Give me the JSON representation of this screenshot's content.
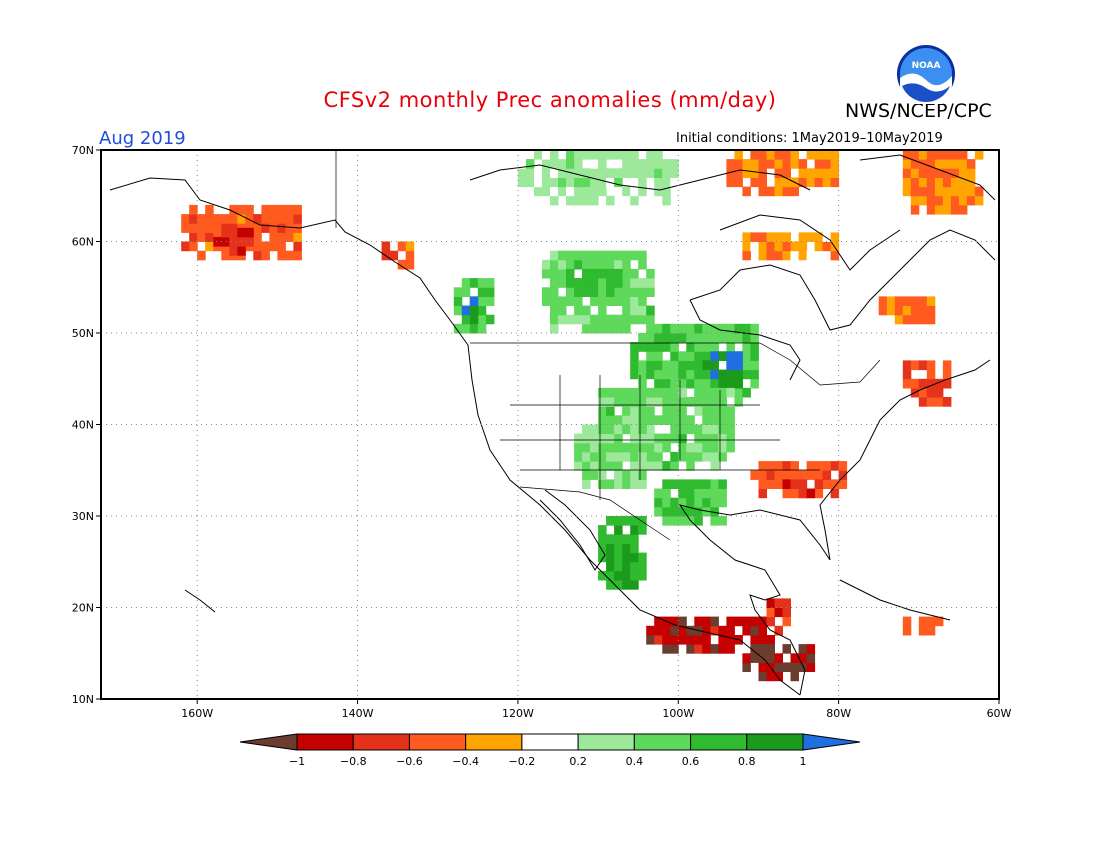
{
  "title": "CFSv2 monthly Prec anomalies (mm/day)",
  "agency": "NWS/NCEP/CPC",
  "logo_text": "NOAA",
  "month": "Aug 2019",
  "initial_conditions": "Initial conditions: 1May2019–10May2019",
  "colors": {
    "title": "#e8000b",
    "month": "#1f4fd8",
    "frame": "#000000",
    "grid": "#888888"
  },
  "map": {
    "lon_range": [
      -172,
      -60
    ],
    "lat_range": [
      10,
      70
    ],
    "lon_ticks": [
      {
        "value": -160,
        "label": "160W"
      },
      {
        "value": -140,
        "label": "140W"
      },
      {
        "value": -120,
        "label": "120W"
      },
      {
        "value": -100,
        "label": "100W"
      },
      {
        "value": -80,
        "label": "80W"
      },
      {
        "value": -60,
        "label": "60W"
      }
    ],
    "lat_ticks": [
      {
        "value": 10,
        "label": "10N"
      },
      {
        "value": 20,
        "label": "20N"
      },
      {
        "value": 30,
        "label": "30N"
      },
      {
        "value": 40,
        "label": "40N"
      },
      {
        "value": 50,
        "label": "50N"
      },
      {
        "value": 60,
        "label": "60N"
      },
      {
        "value": 70,
        "label": "70N"
      }
    ],
    "gridlines": "dotted"
  },
  "legend": {
    "labels": [
      "−1",
      "−0.8",
      "−0.6",
      "−0.4",
      "−0.2",
      "0.2",
      "0.4",
      "0.6",
      "0.8",
      "1"
    ],
    "colors": [
      "#6b3d2e",
      "#c40000",
      "#e5321a",
      "#ff5a1f",
      "#ffa400",
      "#ffffff",
      "#9de89b",
      "#5ed95b",
      "#2fba2f",
      "#1b9a1b",
      "#1f6fe0"
    ]
  },
  "anomaly_regions": [
    {
      "name": "Alaska south coast",
      "lon": [
        -162,
        -147
      ],
      "lat": [
        58,
        64
      ],
      "value": -0.5
    },
    {
      "name": "Alaska peninsula core",
      "lon": [
        -158,
        -153
      ],
      "lat": [
        58.5,
        61
      ],
      "value": -0.8
    },
    {
      "name": "Southeast Alaska coast",
      "lon": [
        -137,
        -133
      ],
      "lat": [
        57,
        60
      ],
      "value": -0.5
    },
    {
      "name": "Pacific Northwest coast",
      "lon": [
        -128,
        -123
      ],
      "lat": [
        50,
        56
      ],
      "value": 0.6
    },
    {
      "name": "Vancouver Island",
      "lon": [
        -127,
        -125
      ],
      "lat": [
        51,
        54
      ],
      "value": 1.0
    },
    {
      "name": "Western Canada prairies",
      "lon": [
        -117,
        -103
      ],
      "lat": [
        50,
        59
      ],
      "value": 0.5
    },
    {
      "name": "Saskatchewan core",
      "lon": [
        -114,
        -107
      ],
      "lat": [
        54,
        57
      ],
      "value": 0.7
    },
    {
      "name": "Northern Great Plains",
      "lon": [
        -106,
        -90
      ],
      "lat": [
        42,
        51
      ],
      "value": 0.6
    },
    {
      "name": "Upper Midwest",
      "lon": [
        -97,
        -92
      ],
      "lat": [
        44,
        48
      ],
      "value": 1.0
    },
    {
      "name": "Central Plains",
      "lon": [
        -110,
        -93
      ],
      "lat": [
        35,
        44
      ],
      "value": 0.5
    },
    {
      "name": "Southern Rockies",
      "lon": [
        -113,
        -104
      ],
      "lat": [
        33,
        40
      ],
      "value": 0.4
    },
    {
      "name": "Texas",
      "lon": [
        -103,
        -94
      ],
      "lat": [
        29,
        34
      ],
      "value": 0.6
    },
    {
      "name": "Southeast US",
      "lon": [
        -91,
        -79
      ],
      "lat": [
        32,
        36
      ],
      "value": -0.5
    },
    {
      "name": "Georgia core",
      "lon": [
        -87,
        -82
      ],
      "lat": [
        32,
        34
      ],
      "value": -0.8
    },
    {
      "name": "New England",
      "lon": [
        -72,
        -66
      ],
      "lat": [
        42,
        47
      ],
      "value": -0.6
    },
    {
      "name": "Northeast Canada",
      "lon": [
        -75,
        -68
      ],
      "lat": [
        51,
        54
      ],
      "value": -0.4
    },
    {
      "name": "Mexico west coast",
      "lon": [
        -110,
        -104
      ],
      "lat": [
        22,
        30
      ],
      "value": 0.8
    },
    {
      "name": "Southern Mexico",
      "lon": [
        -104,
        -88
      ],
      "lat": [
        15,
        19
      ],
      "value": -0.9
    },
    {
      "name": "Central America",
      "lon": [
        -92,
        -83
      ],
      "lat": [
        12,
        16
      ],
      "value": -1.0
    },
    {
      "name": "Yucatan",
      "lon": [
        -90,
        -86
      ],
      "lat": [
        17,
        21
      ],
      "value": -0.7
    },
    {
      "name": "Caribbean",
      "lon": [
        -72,
        -67
      ],
      "lat": [
        17,
        19
      ],
      "value": -0.5
    },
    {
      "name": "Hudson Bay south",
      "lon": [
        -92,
        -80
      ],
      "lat": [
        58,
        61
      ],
      "value": -0.3
    },
    {
      "name": "Baffin region",
      "lon": [
        -94,
        -80
      ],
      "lat": [
        65,
        70
      ],
      "value": -0.4
    },
    {
      "name": "Greenland coast",
      "lon": [
        -72,
        -62
      ],
      "lat": [
        63,
        70
      ],
      "value": -0.4
    },
    {
      "name": "Arctic Canada",
      "lon": [
        -120,
        -100
      ],
      "lat": [
        64,
        70
      ],
      "value": 0.3
    }
  ]
}
